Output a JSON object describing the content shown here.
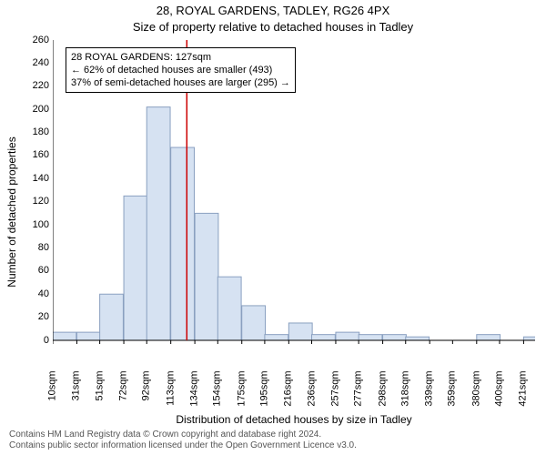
{
  "title_line1": "28, ROYAL GARDENS, TADLEY, RG26 4PX",
  "title_line2": "Size of property relative to detached houses in Tadley",
  "xlabel": "Distribution of detached houses by size in Tadley",
  "ylabel": "Number of detached properties",
  "footer_line1": "Contains HM Land Registry data © Crown copyright and database right 2024.",
  "footer_line2": "Contains public sector information licensed under the Open Government Licence v3.0.",
  "annotation": {
    "l1": "28 ROYAL GARDENS: 127sqm",
    "l2": "← 62% of detached houses are smaller (493)",
    "l3": "37% of semi-detached houses are larger (295) →"
  },
  "chart": {
    "type": "histogram",
    "xlim": [
      10,
      431
    ],
    "ylim": [
      0,
      260
    ],
    "ytick_step": 20,
    "xtick_values": [
      10,
      31,
      51,
      72,
      92,
      113,
      134,
      154,
      175,
      195,
      216,
      236,
      257,
      277,
      298,
      318,
      339,
      359,
      380,
      400,
      421
    ],
    "xtick_unit": "sqm",
    "background_color": "#ffffff",
    "axis_color": "#000000",
    "bar_fill": "#d6e2f2",
    "bar_stroke": "#8aa0c0",
    "marker_line_color": "#cc0000",
    "marker_line_x": 127,
    "bar_width_units": 20.5,
    "bins_x": [
      10,
      31,
      51,
      72,
      92,
      113,
      134,
      154,
      175,
      195,
      216,
      236,
      257,
      277,
      298,
      318,
      339,
      359,
      380,
      400,
      421
    ],
    "bins_y": [
      7,
      7,
      40,
      125,
      202,
      167,
      110,
      55,
      30,
      5,
      15,
      5,
      7,
      5,
      5,
      3,
      0,
      0,
      5,
      0,
      3
    ],
    "tick_fontsize": 11,
    "label_fontsize": 12,
    "title_fontsize": 13
  }
}
